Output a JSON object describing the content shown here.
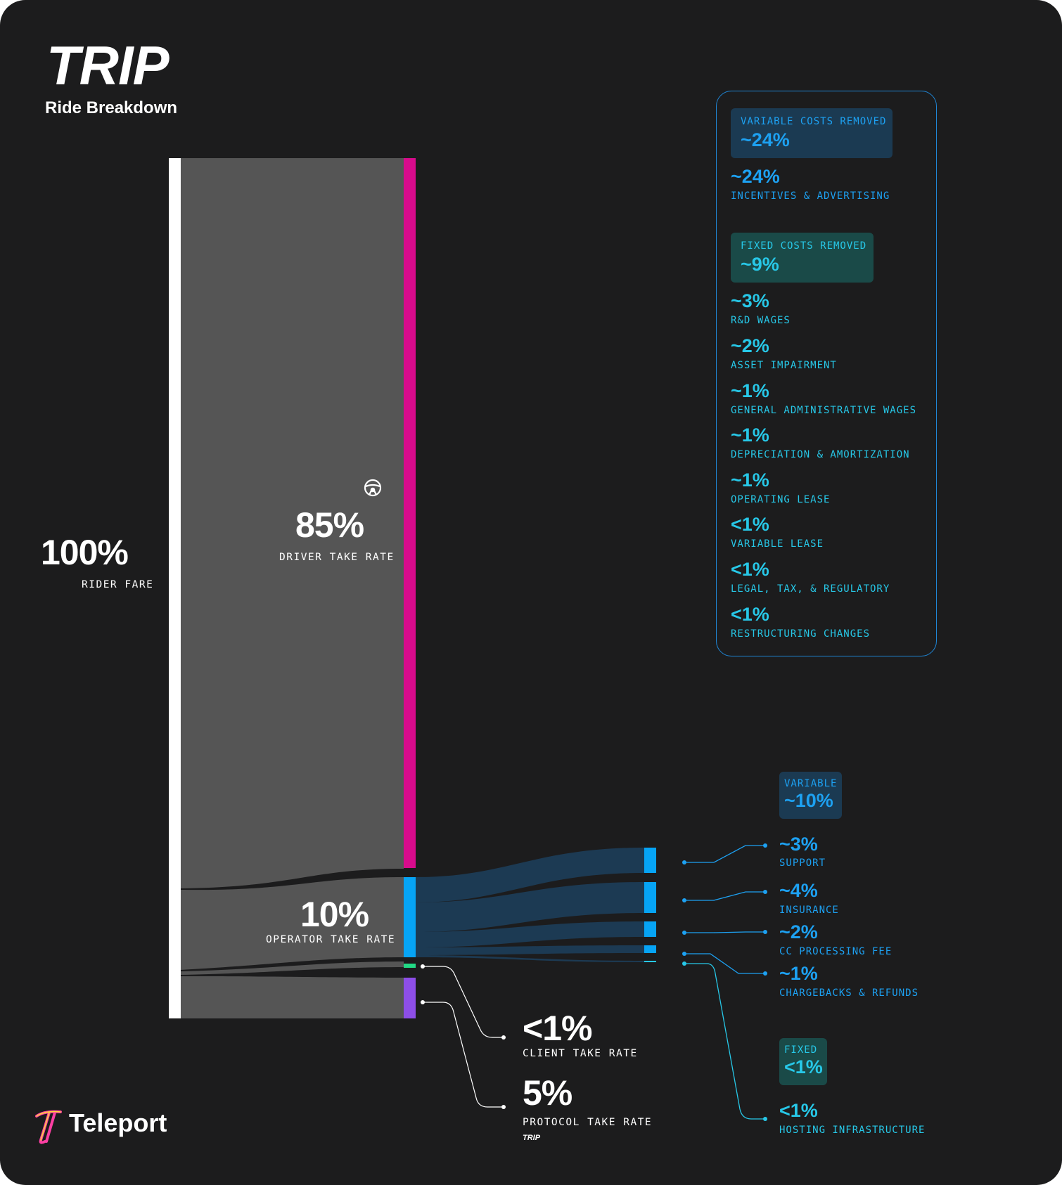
{
  "header": {
    "title": "TRIP",
    "subtitle": "Ride Breakdown"
  },
  "left": {
    "rider": {
      "value": "100%",
      "label": "RIDER FARE"
    },
    "driver": {
      "value": "85%",
      "label": "DRIVER TAKE RATE"
    },
    "operator": {
      "value": "10%",
      "label": "OPERATOR TAKE RATE"
    },
    "client": {
      "value": "<1%",
      "label": "CLIENT TAKE RATE"
    },
    "protocol": {
      "value": "5%",
      "label": "PROTOCOL TAKE RATE",
      "brand": "TRIP"
    }
  },
  "panel": {
    "variable_header": {
      "label": "VARIABLE COSTS REMOVED",
      "value": "~24%"
    },
    "variable_items": [
      {
        "value": "~24%",
        "label": "INCENTIVES & ADVERTISING"
      }
    ],
    "fixed_header": {
      "label": "FIXED COSTS REMOVED",
      "value": "~9%"
    },
    "fixed_items": [
      {
        "value": "~3%",
        "label": "R&D WAGES"
      },
      {
        "value": "~2%",
        "label": "ASSET IMPAIRMENT"
      },
      {
        "value": "~1%",
        "label": "GENERAL ADMINISTRATIVE WAGES"
      },
      {
        "value": "~1%",
        "label": "DEPRECIATION & AMORTIZATION"
      },
      {
        "value": "~1%",
        "label": "OPERATING LEASE"
      },
      {
        "value": "<1%",
        "label": "VARIABLE LEASE"
      },
      {
        "value": "<1%",
        "label": "LEGAL, TAX, & REGULATORY"
      },
      {
        "value": "<1%",
        "label": "RESTRUCTURING CHANGES"
      }
    ]
  },
  "operator_breakdown": {
    "variable_header": {
      "label": "VARIABLE",
      "value": "~10%"
    },
    "variable_items": [
      {
        "value": "~3%",
        "label": "SUPPORT"
      },
      {
        "value": "~4%",
        "label": "INSURANCE"
      },
      {
        "value": "~2%",
        "label": "CC PROCESSING FEE"
      },
      {
        "value": "~1%",
        "label": "CHARGEBACKS & REFUNDS"
      }
    ],
    "fixed_header": {
      "label": "FIXED",
      "value": "<1%"
    },
    "fixed_items": [
      {
        "value": "<1%",
        "label": "HOSTING INFRASTRUCTURE"
      }
    ]
  },
  "footer": {
    "brand": "Teleport"
  },
  "colors": {
    "background": "#1c1c1d",
    "rider": "#ffffff",
    "flow": "#555555",
    "driver": "#d80b8c",
    "operator": "#06a4f5",
    "client": "#22d985",
    "protocol": "#8d4ee8",
    "variable_accent": "#1da1f2",
    "fixed_accent": "#27c8e8"
  },
  "icons": {
    "driver": "steering-wheel-icon",
    "brand_logo": "teleport-logo-icon"
  }
}
